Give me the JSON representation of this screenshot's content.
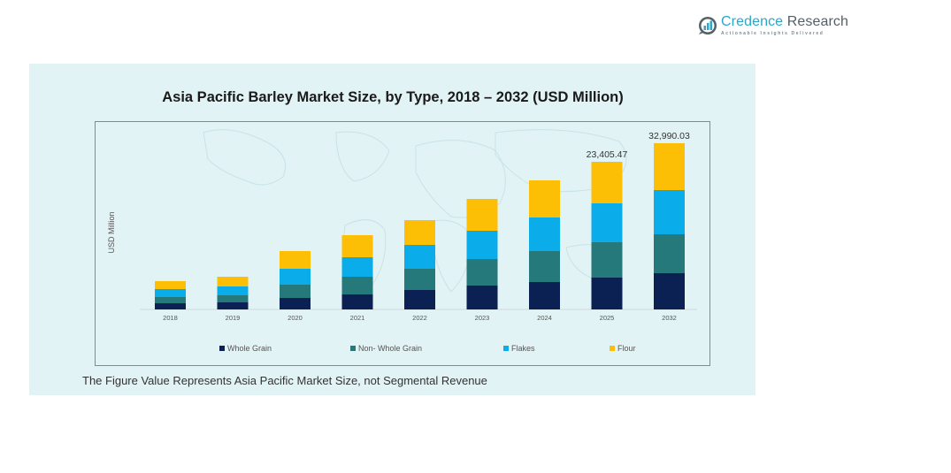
{
  "brand": {
    "name_part1": "Credence",
    "name_part2": " Research",
    "tagline": "Actionable Insights Delivered",
    "icon": "bar-chart-bubble-icon",
    "colors": {
      "primary": "#2aa7c9",
      "secondary": "#555f66"
    }
  },
  "footnote": "The Figure Value Represents Asia Pacific Market Size, not Segmental Revenue",
  "chart_data": {
    "type": "bar",
    "stacked": true,
    "title": "Asia Pacific Barley Market Size, by Type, 2018 – 2032 (USD Million)",
    "xlabel": "",
    "ylabel": "USD Million",
    "categories": [
      "2018",
      "2019",
      "2020",
      "2021",
      "2022",
      "2023",
      "2024",
      "2025",
      "2032"
    ],
    "series": [
      {
        "name": "Whole Grain",
        "color": "#0b2154",
        "values": [
          981,
          1121,
          1822,
          2383,
          3083,
          3784,
          4345,
          5045,
          7195
        ]
      },
      {
        "name": "Non- Whole Grain",
        "color": "#26797a",
        "values": [
          981,
          1121,
          2102,
          2803,
          3364,
          4205,
          4905,
          5606,
          7721
        ]
      },
      {
        "name": "Flakes",
        "color": "#0aadea",
        "values": [
          1261,
          1402,
          2523,
          3083,
          3784,
          4485,
          5326,
          6167,
          8774
        ]
      },
      {
        "name": "Flour",
        "color": "#fdbe06",
        "values": [
          1261,
          1542,
          2803,
          3504,
          3924,
          5045,
          5886,
          6587.47,
          9300.03
        ]
      }
    ],
    "totals_labeled": {
      "2025": "23,405.47",
      "2032": "32,990.03"
    },
    "ylim": [
      0,
      35000
    ],
    "grid": false,
    "legend_position": "bottom"
  }
}
